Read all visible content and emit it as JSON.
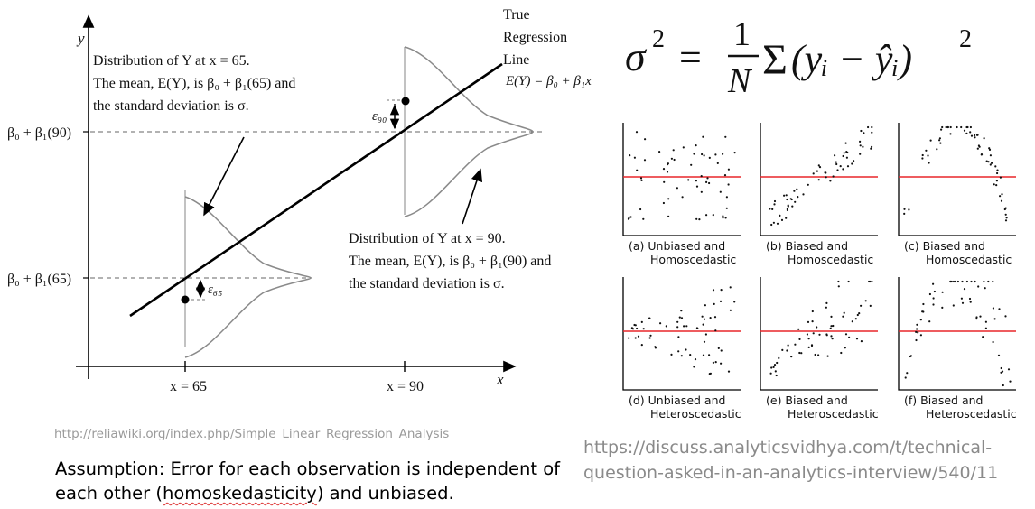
{
  "diagram": {
    "axis_y_label": "y",
    "axis_x_label": "x",
    "tick_x65": "x = 65",
    "tick_x90": "x = 90",
    "ylabel_90": "β₀ + β₁(90)",
    "ylabel_65": "β₀ + β₁(65)",
    "true_line_1": "True",
    "true_line_2": "Regression",
    "true_line_3": "Line",
    "line_eq": "E(Y) = β₀ + β₁x",
    "eps_90": "ε₉₀",
    "eps_65": "ε₆₅",
    "note65_1": "Distribution of Y at x = 65.",
    "note65_2": "The mean, E(Y), is β₀ + β₁(65) and",
    "note65_3": "the standard deviation is σ.",
    "note90_1": "Distribution of Y at x = 90.",
    "note90_2": "The mean, E(Y), is β₀ + β₁(90) and",
    "note90_3": "the standard deviation is σ."
  },
  "formula": {
    "lhs": "σ",
    "exp": "2",
    "eq": "=",
    "num": "1",
    "den": "N",
    "sum": "Σ",
    "body": "(yᵢ − ŷᵢ)",
    "body_exp": "2"
  },
  "panels": [
    {
      "cap1": "(a) Unbiased and",
      "cap2": "Homoscedastic"
    },
    {
      "cap1": "(b) Biased and",
      "cap2": "Homoscedastic"
    },
    {
      "cap1": "(c) Biased and",
      "cap2": "Homoscedastic"
    },
    {
      "cap1": "(d) Unbiased and",
      "cap2": "Heteroscedastic"
    },
    {
      "cap1": "(e) Biased and",
      "cap2": "Heteroscedastic"
    },
    {
      "cap1": "(f) Biased and",
      "cap2": "Heteroscedastic"
    }
  ],
  "source_left": "http://reliawiki.org/index.php/Simple_Linear_Regression_Analysis",
  "source_right": "https://discuss.analyticsvidhya.com/t/technical-question-asked-in-an-analytics-interview/540/11",
  "assumption_prefix": "Assumption: Error for each observation is independent of each other (",
  "assumption_term": "homoskedasticity",
  "assumption_suffix": ") and unbiased.",
  "colors": {
    "zero_line": "#e8262a",
    "curve": "#8a8a8a",
    "source_text": "#9a9a9a"
  }
}
